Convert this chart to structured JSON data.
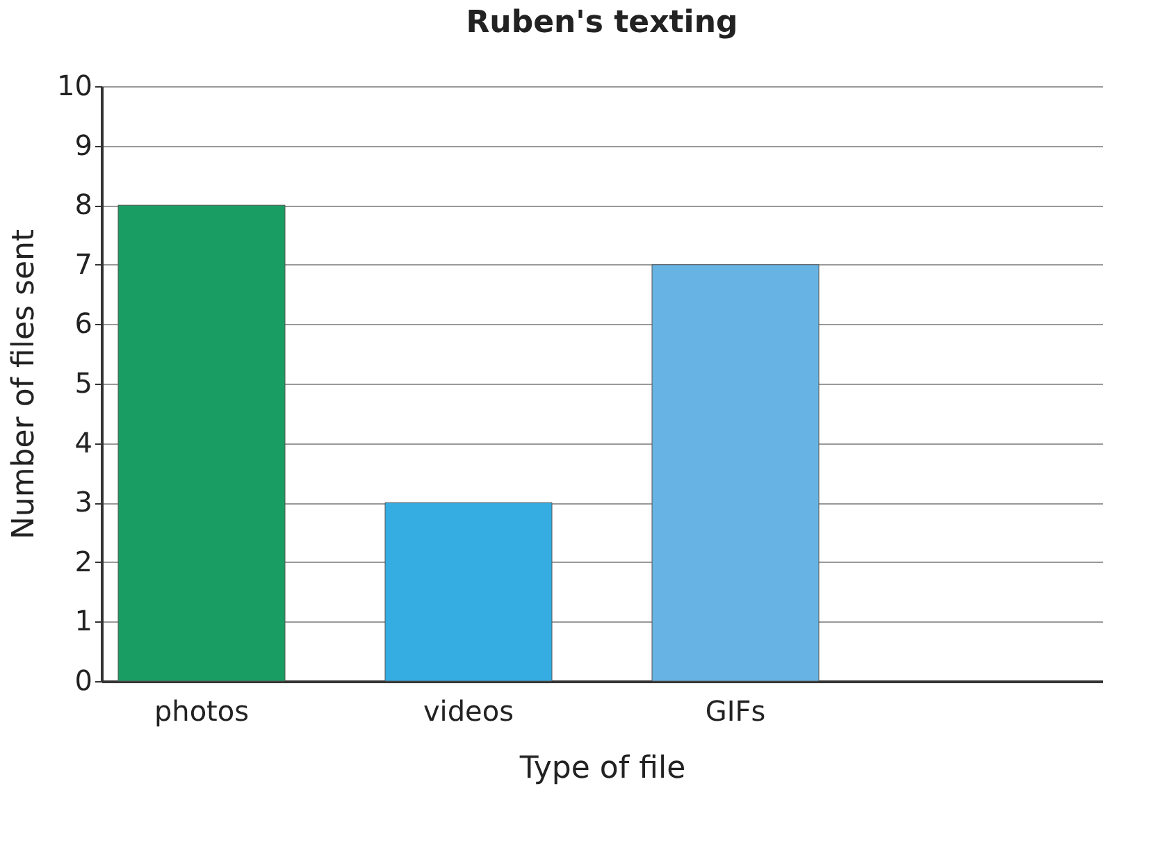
{
  "chart_data": {
    "type": "bar",
    "title": "Ruben's texting",
    "xlabel": "Type of file",
    "ylabel": "Number of files sent",
    "categories": [
      "photos",
      "videos",
      "GIFs",
      null
    ],
    "values": [
      8,
      3,
      7,
      null
    ],
    "colors": [
      "#1a9d63",
      "#35ace2",
      "#67b4e4",
      "#67b4e4"
    ],
    "ylim": [
      0,
      10
    ],
    "yticks": [
      0,
      1,
      2,
      3,
      4,
      5,
      6,
      7,
      8,
      9,
      10
    ],
    "grid": "y"
  }
}
